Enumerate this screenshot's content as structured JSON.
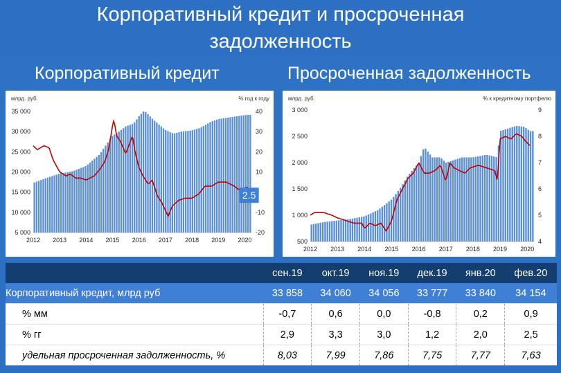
{
  "title": {
    "line1": "Корпоративный кредит и просроченная",
    "line2": "задолженность"
  },
  "left_subtitle": "Корпоративный кредит",
  "right_subtitle": "Просроченная задолженность",
  "callout": "2.5",
  "chart_data": [
    {
      "type": "bar",
      "units_left": "млрд. руб.",
      "units_right": "% год к году",
      "x_labels": [
        "2012",
        "2013",
        "2014",
        "2015",
        "2016",
        "2017",
        "2018",
        "2019",
        "2020"
      ],
      "ylim_left": [
        5000,
        35000
      ],
      "yticks_left": [
        "35 000",
        "30 000",
        "25 000",
        "20 000",
        "15 000",
        "10 000",
        "5 000"
      ],
      "ylim_right": [
        -20,
        40
      ],
      "yticks_right": [
        "40",
        "30",
        "20",
        "10",
        "0",
        "-10",
        "-20"
      ],
      "bar_anchors": [
        [
          2012.0,
          17300
        ],
        [
          2012.5,
          18500
        ],
        [
          2013.0,
          19600
        ],
        [
          2013.5,
          20200
        ],
        [
          2014.0,
          21500
        ],
        [
          2014.5,
          24300
        ],
        [
          2015.0,
          29000
        ],
        [
          2015.2,
          29800
        ],
        [
          2015.5,
          31300
        ],
        [
          2015.8,
          32000
        ],
        [
          2016.0,
          33800
        ],
        [
          2016.2,
          35200
        ],
        [
          2016.5,
          33200
        ],
        [
          2016.8,
          31500
        ],
        [
          2017.0,
          30400
        ],
        [
          2017.3,
          29500
        ],
        [
          2017.6,
          30000
        ],
        [
          2018.0,
          30300
        ],
        [
          2018.3,
          30900
        ],
        [
          2018.5,
          31600
        ],
        [
          2018.7,
          32400
        ],
        [
          2019.0,
          33100
        ],
        [
          2019.5,
          33600
        ],
        [
          2019.8,
          33900
        ],
        [
          2020.1,
          34150
        ]
      ],
      "line_anchors": [
        [
          2012.0,
          23
        ],
        [
          2012.15,
          21
        ],
        [
          2012.4,
          23
        ],
        [
          2012.6,
          22
        ],
        [
          2012.75,
          16
        ],
        [
          2013.0,
          10
        ],
        [
          2013.25,
          8
        ],
        [
          2013.4,
          9
        ],
        [
          2013.6,
          7
        ],
        [
          2013.8,
          7
        ],
        [
          2014.0,
          6
        ],
        [
          2014.3,
          8
        ],
        [
          2014.5,
          11
        ],
        [
          2014.7,
          15
        ],
        [
          2014.85,
          21
        ],
        [
          2015.0,
          33
        ],
        [
          2015.05,
          36
        ],
        [
          2015.15,
          28
        ],
        [
          2015.3,
          25
        ],
        [
          2015.5,
          19
        ],
        [
          2015.75,
          28
        ],
        [
          2015.85,
          20
        ],
        [
          2016.0,
          12
        ],
        [
          2016.15,
          8
        ],
        [
          2016.35,
          4
        ],
        [
          2016.5,
          6
        ],
        [
          2016.7,
          -2
        ],
        [
          2016.85,
          -5
        ],
        [
          2017.0,
          -9
        ],
        [
          2017.1,
          -12
        ],
        [
          2017.25,
          -7
        ],
        [
          2017.5,
          -4
        ],
        [
          2017.75,
          -3
        ],
        [
          2018.0,
          -3
        ],
        [
          2018.25,
          -1
        ],
        [
          2018.5,
          3
        ],
        [
          2018.75,
          3
        ],
        [
          2019.0,
          5
        ],
        [
          2019.3,
          5
        ],
        [
          2019.6,
          3
        ],
        [
          2019.8,
          1
        ],
        [
          2020.0,
          2
        ],
        [
          2020.1,
          2.5
        ]
      ]
    },
    {
      "type": "bar",
      "units_left": "млрд. руб.",
      "units_right": "% к кредитному портфелю",
      "x_labels": [
        "2012",
        "2013",
        "2014",
        "2015",
        "2016",
        "2017",
        "2018",
        "2019",
        "2020"
      ],
      "ylim_left": [
        500,
        3000
      ],
      "yticks_left": [
        "3 000",
        "2 500",
        "2 000",
        "1 500",
        "1 000",
        "500"
      ],
      "ylim_right": [
        4,
        9
      ],
      "yticks_right": [
        "9",
        "8",
        "7",
        "6",
        "5",
        "4"
      ],
      "bar_anchors": [
        [
          2012.0,
          820
        ],
        [
          2012.5,
          870
        ],
        [
          2013.0,
          900
        ],
        [
          2013.5,
          930
        ],
        [
          2014.0,
          980
        ],
        [
          2014.5,
          1100
        ],
        [
          2015.0,
          1300
        ],
        [
          2015.3,
          1500
        ],
        [
          2015.6,
          1750
        ],
        [
          2016.0,
          2000
        ],
        [
          2016.2,
          2300
        ],
        [
          2016.5,
          2100
        ],
        [
          2016.8,
          2100
        ],
        [
          2017.0,
          2000
        ],
        [
          2017.3,
          2050
        ],
        [
          2017.6,
          2100
        ],
        [
          2018.0,
          2100
        ],
        [
          2018.5,
          2150
        ],
        [
          2018.9,
          2100
        ],
        [
          2019.0,
          2600
        ],
        [
          2019.3,
          2650
        ],
        [
          2019.6,
          2700
        ],
        [
          2019.9,
          2680
        ],
        [
          2020.1,
          2600
        ]
      ],
      "line_anchors": [
        [
          2012.0,
          5.0
        ],
        [
          2012.15,
          5.1
        ],
        [
          2012.5,
          5.1
        ],
        [
          2012.8,
          5.0
        ],
        [
          2013.0,
          4.9
        ],
        [
          2013.3,
          4.8
        ],
        [
          2013.6,
          4.7
        ],
        [
          2013.9,
          4.7
        ],
        [
          2014.0,
          4.5
        ],
        [
          2014.2,
          4.7
        ],
        [
          2014.4,
          4.6
        ],
        [
          2014.6,
          4.7
        ],
        [
          2014.8,
          4.4
        ],
        [
          2015.0,
          4.8
        ],
        [
          2015.2,
          5.6
        ],
        [
          2015.4,
          6.0
        ],
        [
          2015.6,
          6.4
        ],
        [
          2015.8,
          6.6
        ],
        [
          2016.0,
          7.0
        ],
        [
          2016.2,
          6.6
        ],
        [
          2016.4,
          6.6
        ],
        [
          2016.6,
          6.7
        ],
        [
          2016.8,
          6.9
        ],
        [
          2017.0,
          6.3
        ],
        [
          2017.15,
          7.0
        ],
        [
          2017.3,
          6.8
        ],
        [
          2017.5,
          6.7
        ],
        [
          2017.7,
          6.6
        ],
        [
          2017.9,
          6.8
        ],
        [
          2018.2,
          6.9
        ],
        [
          2018.5,
          6.8
        ],
        [
          2018.8,
          6.7
        ],
        [
          2018.9,
          6.3
        ],
        [
          2019.0,
          7.9
        ],
        [
          2019.2,
          8.0
        ],
        [
          2019.4,
          7.9
        ],
        [
          2019.6,
          8.1
        ],
        [
          2019.8,
          8.0
        ],
        [
          2019.95,
          7.8
        ],
        [
          2020.1,
          7.65
        ]
      ]
    }
  ],
  "table": {
    "months": [
      "сен.19",
      "окт.19",
      "ноя.19",
      "дек.19",
      "янв.20",
      "фев.20"
    ],
    "rows": [
      {
        "label": "Корпоративный кредит, млрд руб",
        "values": [
          "33 858",
          "34 060",
          "34 056",
          "33 777",
          "33 840",
          "34 154"
        ]
      },
      {
        "label": "% мм",
        "values": [
          "-0,7",
          "0,6",
          "0,0",
          "-0,8",
          "0,2",
          "0,9"
        ]
      },
      {
        "label": "% гг",
        "values": [
          "2,9",
          "3,3",
          "3,0",
          "1,2",
          "2,0",
          "2,5"
        ]
      },
      {
        "label": "удельная просроченная задолженность, %",
        "values": [
          "8,03",
          "7,99",
          "7,86",
          "7,75",
          "7,77",
          "7,63"
        ]
      }
    ]
  },
  "colors": {
    "bars": "#5b8fd6",
    "line": "#c00000",
    "header_bg": "#143d70",
    "accent_row": "#3f7fd6"
  }
}
